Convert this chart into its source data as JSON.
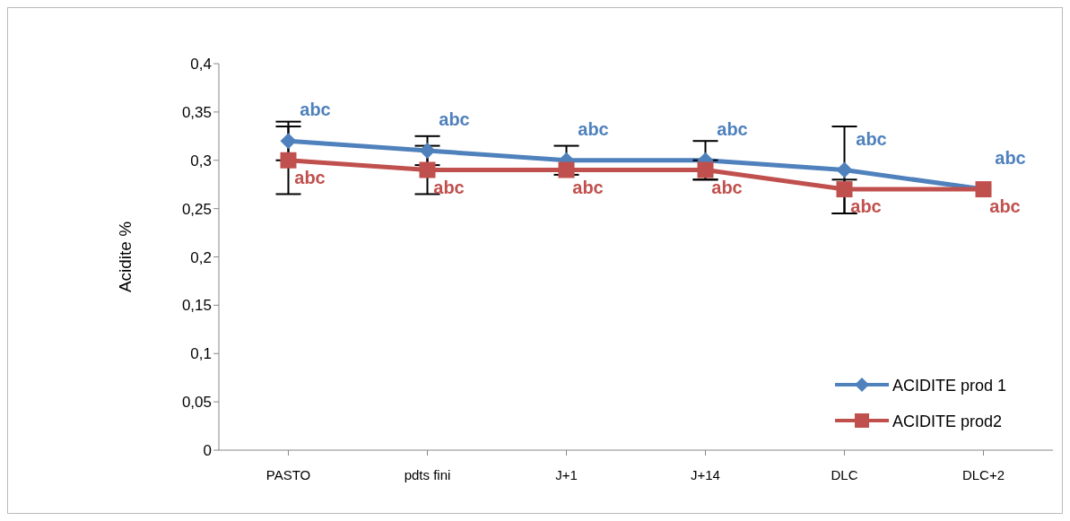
{
  "chart_data": {
    "type": "line",
    "ylabel": "Acidite %",
    "categories": [
      "PASTO",
      "pdts fini",
      "J+1",
      "J+14",
      "DLC",
      "DLC+2"
    ],
    "series": [
      {
        "name": "ACIDITE prod 1",
        "color": "#4f81bd",
        "marker": "diamond",
        "values": [
          0.32,
          0.31,
          0.3,
          0.3,
          0.29,
          0.27
        ],
        "errors": [
          0.02,
          0.015,
          0.015,
          0.02,
          0.045,
          null
        ],
        "value_labels": [
          "abc",
          "abc",
          "abc",
          "abc",
          "abc",
          "abc"
        ]
      },
      {
        "name": "ACIDITE prod2",
        "color": "#c0504d",
        "marker": "square",
        "values": [
          0.3,
          0.29,
          0.29,
          0.29,
          0.27,
          0.27
        ],
        "errors": [
          0.035,
          0.025,
          null,
          0.01,
          [
            0.245,
            0.28
          ],
          null
        ],
        "value_labels": [
          "abc",
          "abc",
          "abc",
          "abc",
          "abc",
          "abc"
        ]
      }
    ],
    "ylim": [
      0,
      0.4
    ],
    "yticks": [
      {
        "value": 0,
        "label": "0"
      },
      {
        "value": 0.05,
        "label": "0,05"
      },
      {
        "value": 0.1,
        "label": "0,1"
      },
      {
        "value": 0.15,
        "label": "0,15"
      },
      {
        "value": 0.2,
        "label": "0,2"
      },
      {
        "value": 0.25,
        "label": "0,25"
      },
      {
        "value": 0.3,
        "label": "0,3"
      },
      {
        "value": 0.35,
        "label": "0,35"
      },
      {
        "value": 0.4,
        "label": "0,4"
      }
    ],
    "grid": false,
    "legend": "right",
    "line_style": "solid"
  }
}
